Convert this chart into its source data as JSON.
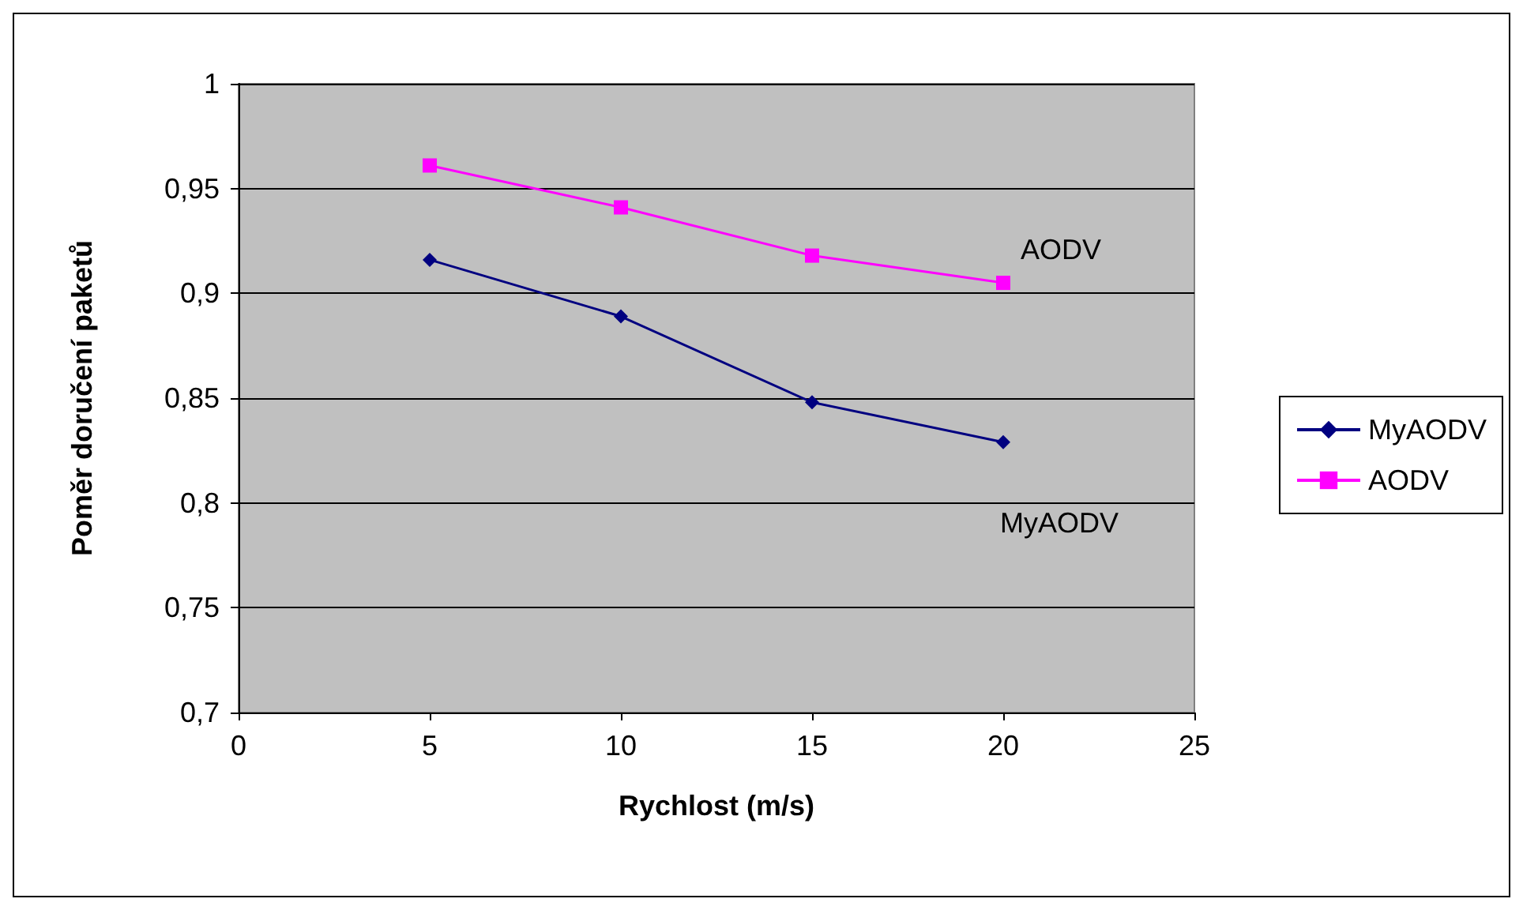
{
  "chart_data": {
    "type": "line",
    "xlabel": "Rychlost (m/s)",
    "ylabel": "Poměr doručení paketů",
    "x": [
      5,
      10,
      15,
      20
    ],
    "series": [
      {
        "name": "MyAODV",
        "color": "#000080",
        "values": [
          0.916,
          0.889,
          0.848,
          0.829
        ],
        "marker": "diamond"
      },
      {
        "name": "AODV",
        "color": "#ff00ff",
        "values": [
          0.961,
          0.941,
          0.918,
          0.905
        ],
        "marker": "square"
      }
    ],
    "xlim": [
      0,
      25
    ],
    "xticks": [
      0,
      5,
      10,
      15,
      20,
      25
    ],
    "ylim": [
      0.7,
      1
    ],
    "yticks": [
      {
        "value": 0.7,
        "label": "0,7"
      },
      {
        "value": 0.75,
        "label": "0,75"
      },
      {
        "value": 0.8,
        "label": "0,8"
      },
      {
        "value": 0.85,
        "label": "0,85"
      },
      {
        "value": 0.9,
        "label": "0,9"
      },
      {
        "value": 0.95,
        "label": "0,95"
      },
      1
    ],
    "grid": "y",
    "legend": "right",
    "line_style": "solid",
    "annotations": [
      "AODV",
      "MyAODV"
    ]
  }
}
